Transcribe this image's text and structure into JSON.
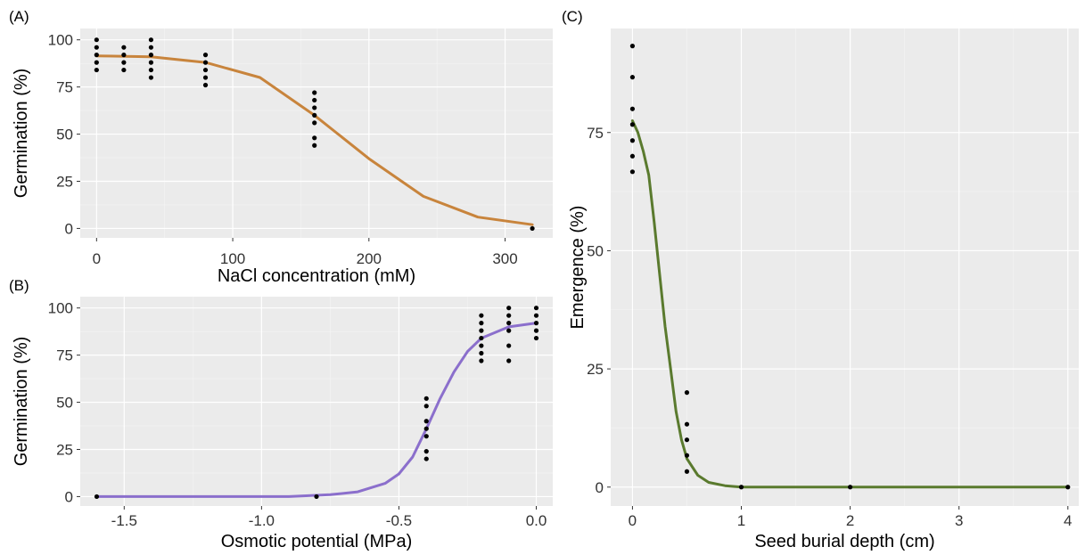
{
  "chart_data": [
    {
      "type": "scatter",
      "panel_label": "(A)",
      "xlabel": "NaCl concentration (mM)",
      "ylabel": "Germination (%)",
      "xlim": [
        -12,
        335
      ],
      "ylim": [
        -5,
        106
      ],
      "x_ticks": [
        0,
        100,
        200,
        300
      ],
      "y_ticks": [
        0,
        25,
        50,
        75,
        100
      ],
      "x_tick_labels": [
        "0",
        "100",
        "200",
        "300"
      ],
      "y_tick_labels": [
        "0",
        "25",
        "50",
        "75",
        "100"
      ],
      "grid": true,
      "points": [
        {
          "x": 0,
          "y": 100
        },
        {
          "x": 0,
          "y": 96
        },
        {
          "x": 0,
          "y": 92
        },
        {
          "x": 0,
          "y": 88
        },
        {
          "x": 0,
          "y": 84
        },
        {
          "x": 20,
          "y": 96
        },
        {
          "x": 20,
          "y": 92
        },
        {
          "x": 20,
          "y": 88
        },
        {
          "x": 20,
          "y": 84
        },
        {
          "x": 40,
          "y": 100
        },
        {
          "x": 40,
          "y": 96
        },
        {
          "x": 40,
          "y": 92
        },
        {
          "x": 40,
          "y": 88
        },
        {
          "x": 40,
          "y": 84
        },
        {
          "x": 40,
          "y": 80
        },
        {
          "x": 80,
          "y": 92
        },
        {
          "x": 80,
          "y": 88
        },
        {
          "x": 80,
          "y": 84
        },
        {
          "x": 80,
          "y": 80
        },
        {
          "x": 80,
          "y": 76
        },
        {
          "x": 160,
          "y": 72
        },
        {
          "x": 160,
          "y": 68
        },
        {
          "x": 160,
          "y": 64
        },
        {
          "x": 160,
          "y": 60
        },
        {
          "x": 160,
          "y": 56
        },
        {
          "x": 160,
          "y": 48
        },
        {
          "x": 160,
          "y": 44
        },
        {
          "x": 320,
          "y": 0
        }
      ],
      "fit_curve": {
        "color": "#C8843C",
        "points": [
          [
            0,
            91.5
          ],
          [
            40,
            91
          ],
          [
            80,
            88
          ],
          [
            120,
            80
          ],
          [
            160,
            60
          ],
          [
            200,
            37
          ],
          [
            240,
            17
          ],
          [
            280,
            6
          ],
          [
            320,
            2
          ]
        ]
      }
    },
    {
      "type": "scatter",
      "panel_label": "(B)",
      "xlabel": "Osmotic potential (MPa)",
      "ylabel": "Germination (%)",
      "xlim": [
        -1.66,
        0.06
      ],
      "ylim": [
        -5,
        106
      ],
      "x_ticks": [
        -1.5,
        -1.0,
        -0.5,
        0.0
      ],
      "y_ticks": [
        0,
        25,
        50,
        75,
        100
      ],
      "x_tick_labels": [
        "-1.5",
        "-1.0",
        "-0.5",
        "0.0"
      ],
      "y_tick_labels": [
        "0",
        "25",
        "50",
        "75",
        "100"
      ],
      "grid": true,
      "points": [
        {
          "x": -1.6,
          "y": 0
        },
        {
          "x": -0.8,
          "y": 0
        },
        {
          "x": -0.4,
          "y": 52
        },
        {
          "x": -0.4,
          "y": 48
        },
        {
          "x": -0.4,
          "y": 40
        },
        {
          "x": -0.4,
          "y": 36
        },
        {
          "x": -0.4,
          "y": 32
        },
        {
          "x": -0.4,
          "y": 24
        },
        {
          "x": -0.4,
          "y": 20
        },
        {
          "x": -0.2,
          "y": 96
        },
        {
          "x": -0.2,
          "y": 92
        },
        {
          "x": -0.2,
          "y": 88
        },
        {
          "x": -0.2,
          "y": 84
        },
        {
          "x": -0.2,
          "y": 80
        },
        {
          "x": -0.2,
          "y": 76
        },
        {
          "x": -0.2,
          "y": 72
        },
        {
          "x": -0.1,
          "y": 100
        },
        {
          "x": -0.1,
          "y": 96
        },
        {
          "x": -0.1,
          "y": 92
        },
        {
          "x": -0.1,
          "y": 88
        },
        {
          "x": -0.1,
          "y": 80
        },
        {
          "x": -0.1,
          "y": 72
        },
        {
          "x": 0,
          "y": 100
        },
        {
          "x": 0,
          "y": 96
        },
        {
          "x": 0,
          "y": 92
        },
        {
          "x": 0,
          "y": 88
        },
        {
          "x": 0,
          "y": 84
        }
      ],
      "fit_curve": {
        "color": "#8B6FCC",
        "points": [
          [
            -1.6,
            0
          ],
          [
            -1.2,
            0
          ],
          [
            -0.9,
            0
          ],
          [
            -0.75,
            1
          ],
          [
            -0.65,
            2.5
          ],
          [
            -0.55,
            7
          ],
          [
            -0.5,
            12
          ],
          [
            -0.45,
            21
          ],
          [
            -0.4,
            36
          ],
          [
            -0.35,
            52
          ],
          [
            -0.3,
            66
          ],
          [
            -0.25,
            77
          ],
          [
            -0.2,
            84
          ],
          [
            -0.1,
            90
          ],
          [
            0,
            92
          ]
        ]
      }
    },
    {
      "type": "scatter",
      "panel_label": "(C)",
      "xlabel": "Seed burial depth (cm)",
      "ylabel": "Emergence (%)",
      "xlim": [
        -0.2,
        4.1
      ],
      "ylim": [
        -4,
        97
      ],
      "x_ticks": [
        0,
        1,
        2,
        3,
        4
      ],
      "y_ticks": [
        0,
        25,
        50,
        75
      ],
      "x_tick_labels": [
        "0",
        "1",
        "2",
        "3",
        "4"
      ],
      "y_tick_labels": [
        "0",
        "25",
        "50",
        "75"
      ],
      "grid": true,
      "points": [
        {
          "x": 0,
          "y": 93.3
        },
        {
          "x": 0,
          "y": 86.7
        },
        {
          "x": 0,
          "y": 80
        },
        {
          "x": 0,
          "y": 76.7
        },
        {
          "x": 0,
          "y": 73.3
        },
        {
          "x": 0,
          "y": 70
        },
        {
          "x": 0,
          "y": 66.7
        },
        {
          "x": 0.5,
          "y": 20
        },
        {
          "x": 0.5,
          "y": 13.3
        },
        {
          "x": 0.5,
          "y": 10
        },
        {
          "x": 0.5,
          "y": 6.7
        },
        {
          "x": 0.5,
          "y": 3.3
        },
        {
          "x": 1,
          "y": 0
        },
        {
          "x": 2,
          "y": 0
        },
        {
          "x": 4,
          "y": 0
        }
      ],
      "fit_curve": {
        "color": "#5A7A2E",
        "points": [
          [
            0,
            77.5
          ],
          [
            0.05,
            75
          ],
          [
            0.1,
            71
          ],
          [
            0.15,
            66
          ],
          [
            0.2,
            56
          ],
          [
            0.25,
            45
          ],
          [
            0.3,
            34
          ],
          [
            0.35,
            25
          ],
          [
            0.4,
            16
          ],
          [
            0.45,
            10
          ],
          [
            0.5,
            6
          ],
          [
            0.6,
            2.5
          ],
          [
            0.7,
            1
          ],
          [
            0.85,
            0.3
          ],
          [
            1,
            0
          ],
          [
            2,
            0
          ],
          [
            3,
            0
          ],
          [
            4,
            0
          ]
        ]
      }
    }
  ]
}
